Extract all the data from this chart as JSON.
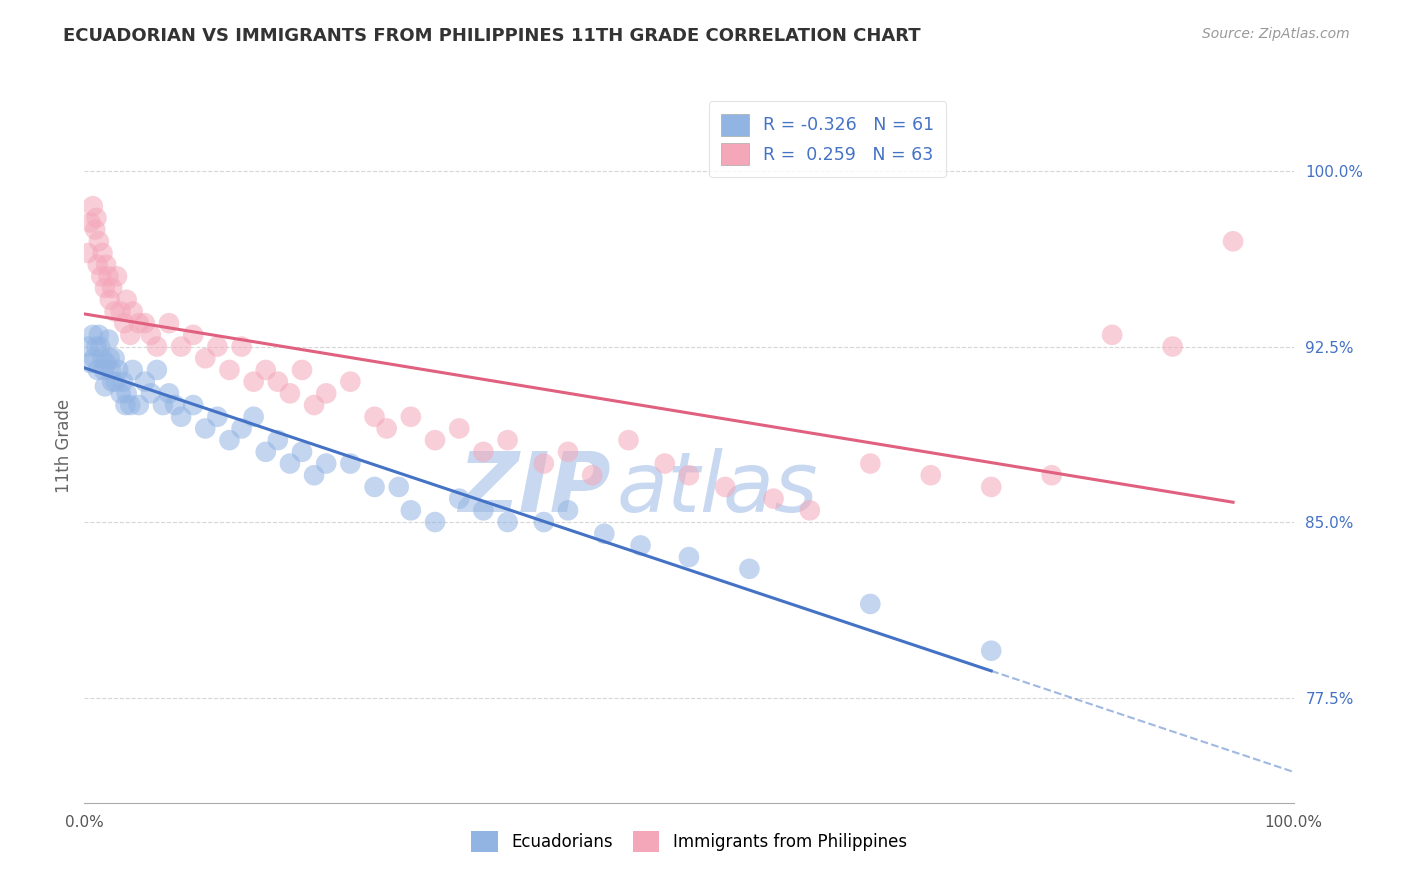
{
  "title": "ECUADORIAN VS IMMIGRANTS FROM PHILIPPINES 11TH GRADE CORRELATION CHART",
  "source_text": "Source: ZipAtlas.com",
  "ylabel": "11th Grade",
  "ylabel_right_ticks": [
    77.5,
    85.0,
    92.5,
    100.0
  ],
  "ylabel_right_labels": [
    "77.5%",
    "85.0%",
    "92.5%",
    "100.0%"
  ],
  "xmin": 0.0,
  "xmax": 100.0,
  "ymin": 73.0,
  "ymax": 103.5,
  "blue_color": "#92B4E3",
  "pink_color": "#F4A7B9",
  "blue_line_color": "#4472C4",
  "pink_line_color": "#E06080",
  "legend_blue_label": "Ecuadorians",
  "legend_pink_label": "Immigrants from Philippines",
  "R_blue": -0.326,
  "N_blue": 61,
  "R_pink": 0.259,
  "N_pink": 63,
  "blue_x": [
    0.3,
    0.5,
    0.7,
    0.8,
    1.0,
    1.1,
    1.2,
    1.3,
    1.5,
    1.6,
    1.7,
    1.8,
    2.0,
    2.1,
    2.2,
    2.3,
    2.5,
    2.6,
    2.8,
    3.0,
    3.2,
    3.4,
    3.5,
    3.8,
    4.0,
    4.5,
    5.0,
    5.5,
    6.0,
    6.5,
    7.0,
    7.5,
    8.0,
    9.0,
    10.0,
    11.0,
    12.0,
    13.0,
    14.0,
    15.0,
    16.0,
    17.0,
    18.0,
    19.0,
    20.0,
    22.0,
    24.0,
    26.0,
    27.0,
    29.0,
    31.0,
    33.0,
    35.0,
    38.0,
    40.0,
    43.0,
    46.0,
    50.0,
    55.0,
    65.0,
    75.0
  ],
  "blue_y": [
    92.5,
    91.8,
    93.0,
    92.0,
    92.5,
    91.5,
    93.0,
    92.5,
    92.0,
    91.5,
    90.8,
    91.8,
    92.8,
    92.0,
    91.5,
    91.0,
    92.0,
    91.0,
    91.5,
    90.5,
    91.0,
    90.0,
    90.5,
    90.0,
    91.5,
    90.0,
    91.0,
    90.5,
    91.5,
    90.0,
    90.5,
    90.0,
    89.5,
    90.0,
    89.0,
    89.5,
    88.5,
    89.0,
    89.5,
    88.0,
    88.5,
    87.5,
    88.0,
    87.0,
    87.5,
    87.5,
    86.5,
    86.5,
    85.5,
    85.0,
    86.0,
    85.5,
    85.0,
    85.0,
    85.5,
    84.5,
    84.0,
    83.5,
    83.0,
    81.5,
    79.5
  ],
  "pink_x": [
    0.3,
    0.5,
    0.7,
    0.9,
    1.0,
    1.1,
    1.2,
    1.4,
    1.5,
    1.7,
    1.8,
    2.0,
    2.1,
    2.3,
    2.5,
    2.7,
    3.0,
    3.3,
    3.5,
    3.8,
    4.0,
    4.5,
    5.0,
    5.5,
    6.0,
    7.0,
    8.0,
    9.0,
    10.0,
    11.0,
    12.0,
    13.0,
    14.0,
    15.0,
    16.0,
    17.0,
    18.0,
    19.0,
    20.0,
    22.0,
    24.0,
    25.0,
    27.0,
    29.0,
    31.0,
    33.0,
    35.0,
    38.0,
    40.0,
    42.0,
    45.0,
    48.0,
    50.0,
    53.0,
    57.0,
    60.0,
    65.0,
    70.0,
    75.0,
    80.0,
    85.0,
    90.0,
    95.0
  ],
  "pink_y": [
    96.5,
    97.8,
    98.5,
    97.5,
    98.0,
    96.0,
    97.0,
    95.5,
    96.5,
    95.0,
    96.0,
    95.5,
    94.5,
    95.0,
    94.0,
    95.5,
    94.0,
    93.5,
    94.5,
    93.0,
    94.0,
    93.5,
    93.5,
    93.0,
    92.5,
    93.5,
    92.5,
    93.0,
    92.0,
    92.5,
    91.5,
    92.5,
    91.0,
    91.5,
    91.0,
    90.5,
    91.5,
    90.0,
    90.5,
    91.0,
    89.5,
    89.0,
    89.5,
    88.5,
    89.0,
    88.0,
    88.5,
    87.5,
    88.0,
    87.0,
    88.5,
    87.5,
    87.0,
    86.5,
    86.0,
    85.5,
    87.5,
    87.0,
    86.5,
    87.0,
    93.0,
    92.5,
    97.0
  ],
  "watermark_zip": "ZIP",
  "watermark_atlas": "atlas",
  "watermark_color": "#C8D8F0",
  "grid_color": "#CCCCCC",
  "background_color": "#FFFFFF",
  "fig_background": "#FFFFFF"
}
